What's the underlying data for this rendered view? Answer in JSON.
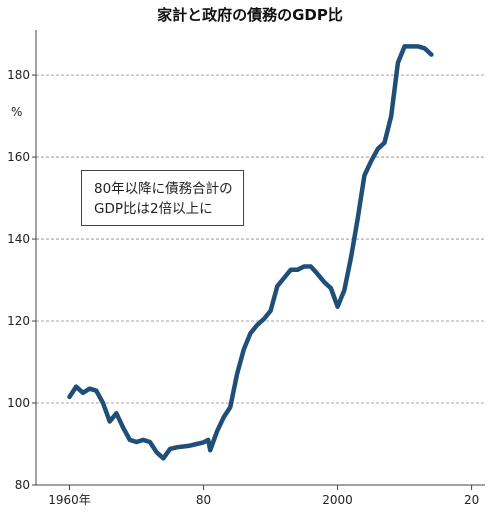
{
  "chart_data": {
    "type": "line",
    "title": "家計と政府の債務のGDP比",
    "unit_label": "%",
    "annotation": [
      "80年以降に債務合計の",
      "GDP比は2倍以上に"
    ],
    "x_tick_labels": [
      {
        "x": 1960,
        "label": "1960年"
      },
      {
        "x": 1980,
        "label": "80"
      },
      {
        "x": 2000,
        "label": "2000"
      },
      {
        "x": 2020,
        "label": "20"
      }
    ],
    "y_ticks": [
      80,
      100,
      120,
      140,
      160,
      180
    ],
    "xlim": [
      1955,
      2022
    ],
    "ylim": [
      80,
      191
    ],
    "grid": "horizontal dashed",
    "line_color": "#1f4e79",
    "series": [
      {
        "x": [
          1960,
          1961,
          1962,
          1963,
          1964,
          1965,
          1966,
          1967,
          1968,
          1969,
          1970,
          1971,
          1972,
          1973,
          1974,
          1975,
          1976,
          1977,
          1978,
          1979,
          1980,
          1980.7,
          1981,
          1982,
          1983,
          1984,
          1985,
          1986,
          1987,
          1988,
          1989,
          1990,
          1991,
          1992,
          1993,
          1994,
          1995,
          1996,
          1997,
          1998,
          1999,
          2000,
          2001,
          2002,
          2003,
          2004,
          2005,
          2006,
          2007,
          2008,
          2009,
          2010,
          2011,
          2012,
          2013,
          2014
        ],
        "y": [
          101.5,
          104,
          102.5,
          103.5,
          103,
          100,
          95.5,
          97.5,
          94,
          91,
          90.5,
          91,
          90.5,
          88,
          86.5,
          88.8,
          89.2,
          89.4,
          89.6,
          90,
          90.4,
          91,
          88.5,
          93,
          96.5,
          99,
          107,
          113,
          117,
          119,
          120.5,
          122.5,
          128.5,
          130.5,
          132.5,
          132.5,
          133.3,
          133.3,
          131.5,
          129.5,
          128,
          123.5,
          127.5,
          135.5,
          145,
          155.5,
          159,
          162,
          163.5,
          170,
          183,
          187,
          187,
          187,
          186.5,
          185
        ]
      }
    ]
  }
}
